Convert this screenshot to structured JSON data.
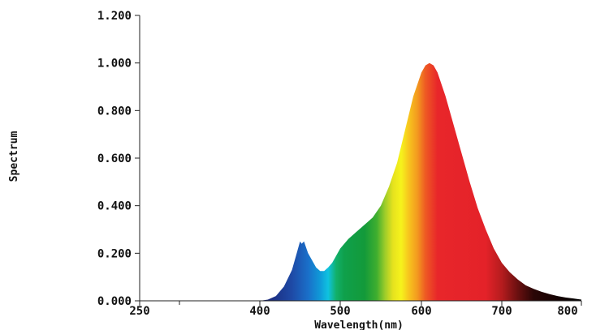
{
  "chart_data": {
    "type": "area",
    "title": "",
    "xlabel": "Wavelength(nm)",
    "ylabel": "Spectrum",
    "xlim": [
      250,
      800
    ],
    "ylim": [
      0,
      1.2
    ],
    "x_ticks": [
      250,
      400,
      500,
      600,
      700,
      800
    ],
    "x_tick_labels": [
      "250",
      "400",
      "500",
      "600",
      "700",
      "800"
    ],
    "y_ticks": [
      0,
      0.2,
      0.4,
      0.6,
      0.8,
      1.0,
      1.2
    ],
    "y_tick_labels": [
      "0.000",
      "0.200",
      "0.400",
      "0.600",
      "0.800",
      "1.000",
      "1.200"
    ],
    "grid": false,
    "fill": "visible-spectrum color gradient",
    "x": [
      400,
      410,
      420,
      430,
      440,
      445,
      450,
      452,
      455,
      458,
      460,
      465,
      470,
      475,
      480,
      485,
      490,
      495,
      500,
      510,
      520,
      530,
      540,
      550,
      560,
      570,
      580,
      590,
      600,
      605,
      610,
      615,
      620,
      630,
      640,
      650,
      660,
      670,
      680,
      690,
      700,
      710,
      720,
      730,
      740,
      750,
      760,
      770,
      780,
      790,
      800
    ],
    "values": [
      0.0,
      0.005,
      0.02,
      0.06,
      0.13,
      0.19,
      0.25,
      0.24,
      0.25,
      0.22,
      0.2,
      0.17,
      0.14,
      0.125,
      0.125,
      0.14,
      0.16,
      0.19,
      0.22,
      0.26,
      0.29,
      0.32,
      0.35,
      0.4,
      0.48,
      0.58,
      0.72,
      0.86,
      0.96,
      0.99,
      1.0,
      0.99,
      0.96,
      0.86,
      0.74,
      0.62,
      0.5,
      0.39,
      0.3,
      0.22,
      0.16,
      0.12,
      0.09,
      0.065,
      0.05,
      0.038,
      0.028,
      0.02,
      0.014,
      0.01,
      0.005
    ]
  }
}
